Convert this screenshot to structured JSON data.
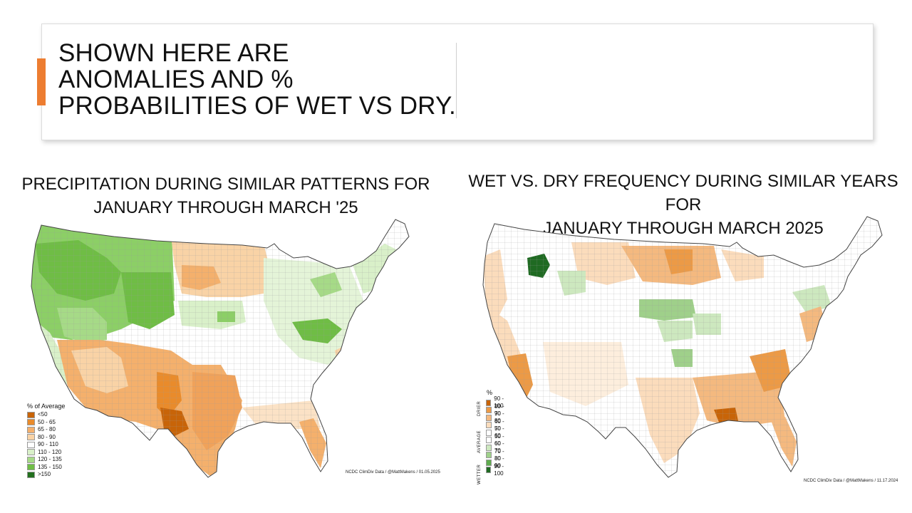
{
  "slide": {
    "title": "SHOWN HERE ARE ANOMALIES AND % PROBABILITIES OF WET VS DRY.",
    "title_lines": [
      "SHOWN HERE ARE",
      "ANOMALIES AND %",
      "PROBABILITIES OF WET VS DRY."
    ],
    "accent_color": "#ed7d31"
  },
  "left_map": {
    "title_lines": [
      "PRECIPITATION DURING SIMILAR PATTERNS FOR",
      "JANUARY THROUGH MARCH '25"
    ],
    "legend_title": "% of Average",
    "legend": [
      {
        "label": "<50",
        "color": "#c86408"
      },
      {
        "label": "50 - 65",
        "color": "#e98b2b"
      },
      {
        "label": "65 - 80",
        "color": "#f4b06c"
      },
      {
        "label": "80 - 90",
        "color": "#f9d3a6"
      },
      {
        "label": "90 - 110",
        "color": "#ffffff"
      },
      {
        "label": "110 - 120",
        "color": "#d9f0c9"
      },
      {
        "label": "120 - 135",
        "color": "#a6da87"
      },
      {
        "label": "135 - 150",
        "color": "#6fbd45"
      },
      {
        "label": ">150",
        "color": "#23701e"
      }
    ],
    "credit": "NCDC ClimDiv Data / @MattMakens / 01.05.2025"
  },
  "right_map": {
    "title_lines": [
      "WET VS. DRY FREQUENCY DURING SIMILAR YEARS FOR",
      "JANUARY THROUGH MARCH 2025"
    ],
    "legend_title": "%",
    "side_labels": {
      "drier": "DRIER",
      "average": "AVERAGE",
      "wetter": "WETTER"
    },
    "legend": [
      {
        "label": "90 - 100",
        "color": "#c86408"
      },
      {
        "label": "80 - 90",
        "color": "#ec9a46"
      },
      {
        "label": "70 - 80",
        "color": "#f4b97f"
      },
      {
        "label": "60 - 70",
        "color": "#fbdcbc"
      },
      {
        "label": "50 - 60",
        "color": "#ffffff"
      },
      {
        "label": "50 - 60",
        "color": "#ffffff"
      },
      {
        "label": "60 - 70",
        "color": "#cde8bf"
      },
      {
        "label": "70 - 80",
        "color": "#9fd08a"
      },
      {
        "label": "80 - 90",
        "color": "#5fad4e"
      },
      {
        "label": "90 - 100",
        "color": "#1f6a22"
      }
    ],
    "credit": "NCDC ClimDiv Data / @MattMakens / 11.17.2024"
  }
}
